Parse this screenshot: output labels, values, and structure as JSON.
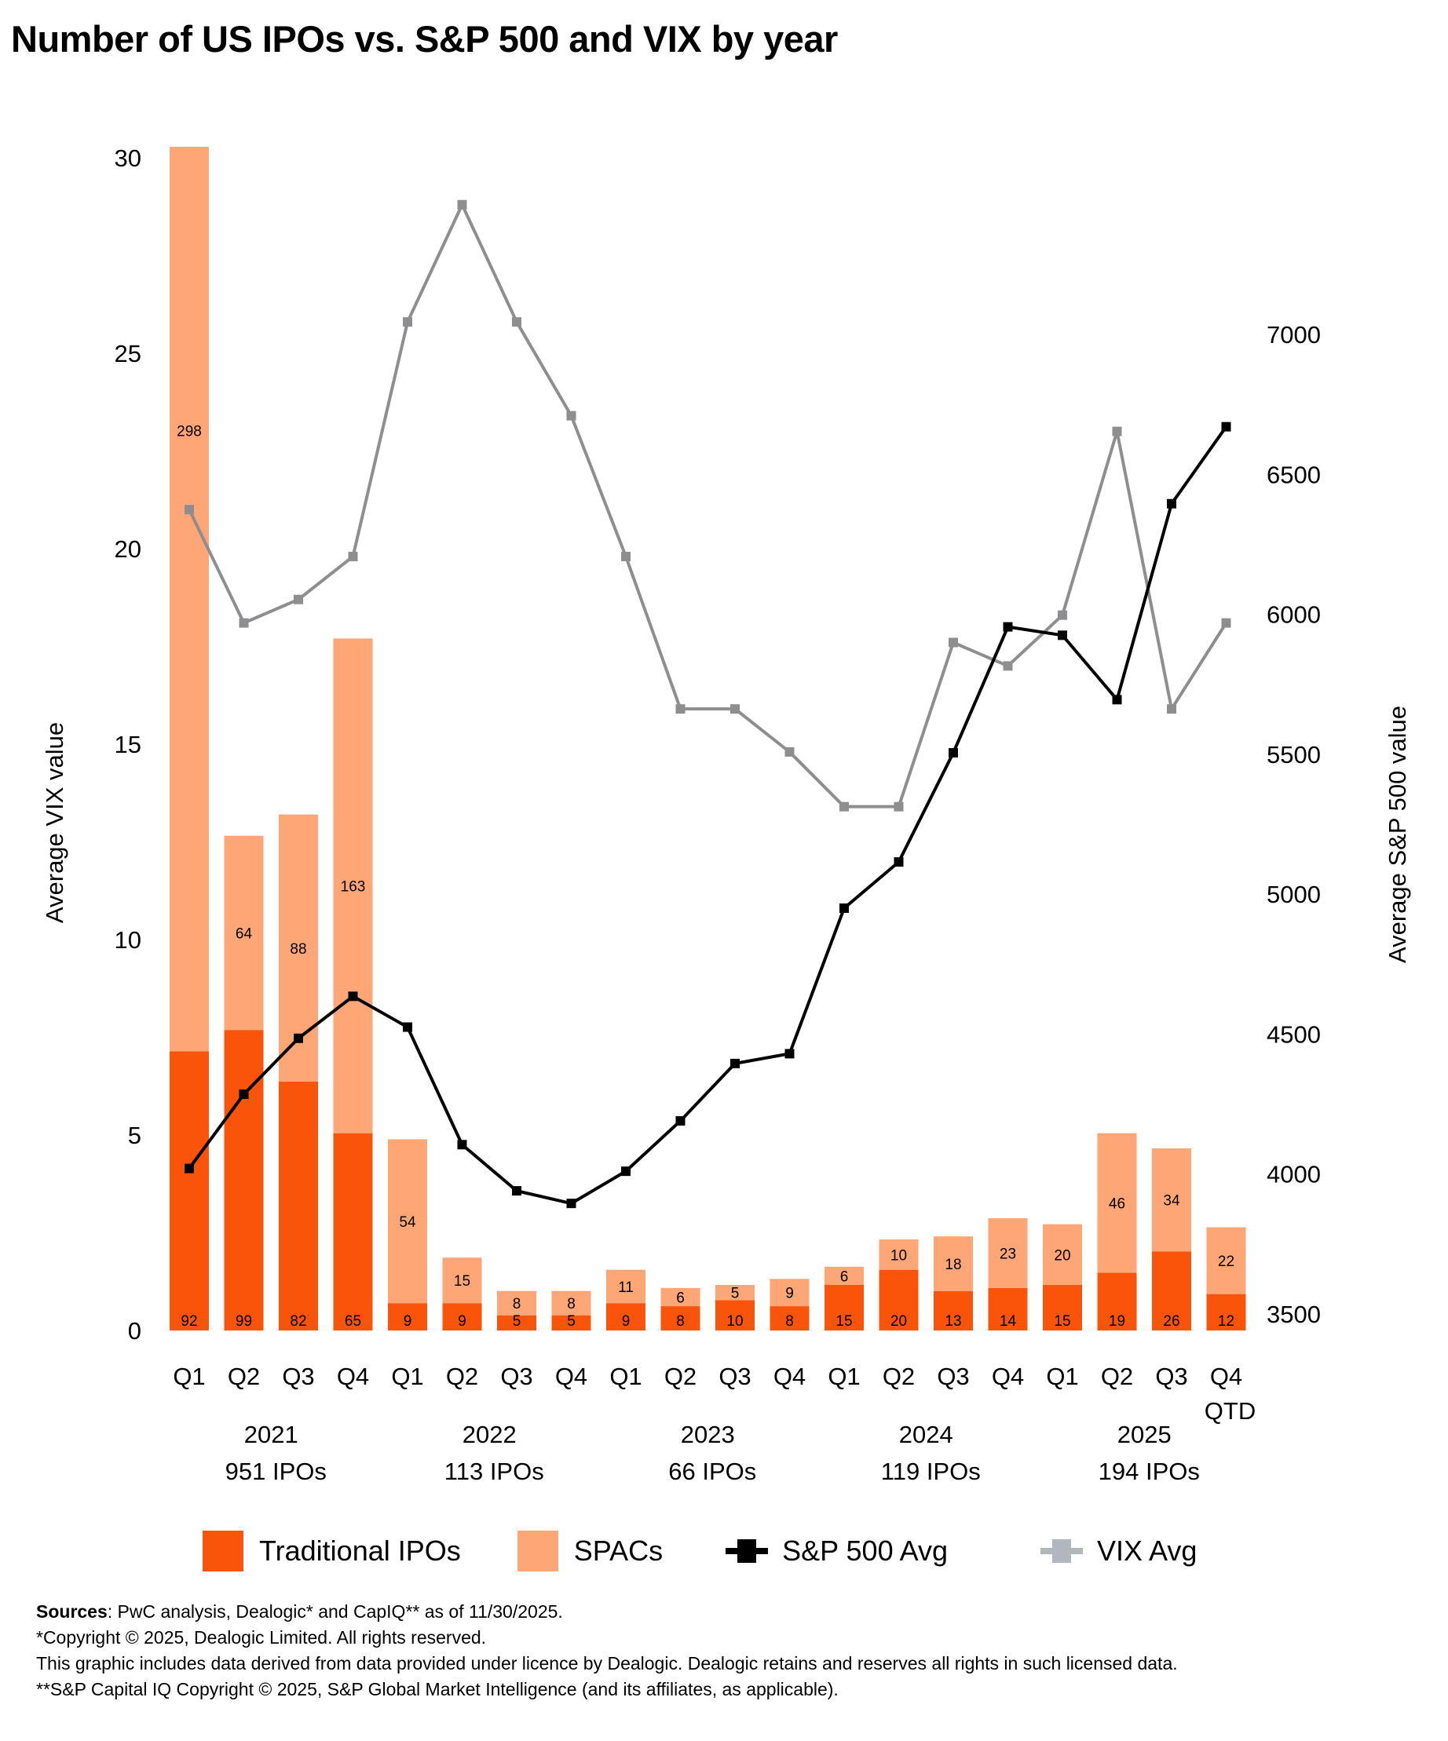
{
  "title": "Number of US IPOs vs. S&P 500 and VIX by year",
  "chart_data": {
    "type": "bar",
    "title": "Number of US IPOs vs. S&P 500 and VIX by year",
    "categories": [
      "Q1",
      "Q2",
      "Q3",
      "Q4",
      "Q1",
      "Q2",
      "Q3",
      "Q4",
      "Q1",
      "Q2",
      "Q3",
      "Q4",
      "Q1",
      "Q2",
      "Q3",
      "Q4",
      "Q1",
      "Q2",
      "Q3",
      "Q4"
    ],
    "category_sublabels": [
      "",
      "",
      "",
      "",
      "",
      "",
      "",
      "",
      "",
      "",
      "",
      "",
      "",
      "",
      "",
      "",
      "",
      "",
      "",
      "QTD"
    ],
    "groups": [
      {
        "year": "2021",
        "total": "951 IPOs"
      },
      {
        "year": "2022",
        "total": "113 IPOs"
      },
      {
        "year": "2023",
        "total": "66 IPOs"
      },
      {
        "year": "2024",
        "total": "119 IPOs"
      },
      {
        "year": "2025",
        "total": "194 IPOs"
      }
    ],
    "series": [
      {
        "name": "Traditional IPOs",
        "type": "stacked-bar",
        "color": "#f95409",
        "values": [
          92,
          99,
          82,
          65,
          9,
          9,
          5,
          5,
          9,
          8,
          10,
          8,
          15,
          20,
          13,
          14,
          15,
          19,
          26,
          12
        ]
      },
      {
        "name": "SPACs",
        "type": "stacked-bar",
        "color": "#fea675",
        "values": [
          298,
          64,
          88,
          163,
          54,
          15,
          8,
          8,
          11,
          6,
          5,
          9,
          6,
          10,
          18,
          23,
          20,
          46,
          34,
          22
        ]
      },
      {
        "name": "S&P 500 Avg",
        "type": "line",
        "axis": "right",
        "color": "#000000",
        "values": [
          4020,
          4285,
          4485,
          4635,
          4525,
          4105,
          3940,
          3895,
          4010,
          4190,
          4395,
          4430,
          4950,
          5115,
          5505,
          5955,
          5925,
          5695,
          6395,
          6670
        ]
      },
      {
        "name": "VIX Avg",
        "type": "line",
        "axis": "left",
        "color": "#8e8e90",
        "values": [
          21.0,
          18.1,
          18.7,
          19.8,
          25.8,
          28.8,
          25.8,
          23.4,
          19.8,
          15.9,
          15.9,
          14.8,
          13.4,
          13.4,
          17.6,
          17.0,
          18.3,
          23.0,
          15.9,
          18.1
        ]
      }
    ],
    "ylabel": "Average VIX value",
    "ylim": [
      0,
      30
    ],
    "yticks": [
      "0",
      "5",
      "10",
      "15",
      "20",
      "25",
      "30"
    ],
    "y2label": "Average S&P 500 value",
    "y2lim": [
      3500,
      7000
    ],
    "y2ticks": [
      "3500",
      "4000",
      "4500",
      "5000",
      "5500",
      "6000",
      "6500",
      "7000"
    ],
    "bar_ipo_scale_max": 390,
    "grid": false,
    "legend_position": "bottom"
  },
  "legend": {
    "traditional": "Traditional IPOs",
    "spacs": "SPACs",
    "sp500": "S&P 500 Avg",
    "vix": "VIX Avg",
    "vix_legend_color": "#b2b6bd"
  },
  "footer": {
    "sources_label": "Sources",
    "sources_text": ": PwC analysis, Dealogic* and CapIQ** as of 11/30/2025.",
    "line2": "*Copyright © 2025, Dealogic Limited. All rights reserved.",
    "line3": "This graphic includes data derived from data provided under licence by Dealogic. Dealogic retains and reserves all rights in such licensed data.",
    "line4": "**S&P Capital IQ Copyright © 2025, S&P Global Market Intelligence (and its affiliates, as applicable)."
  }
}
